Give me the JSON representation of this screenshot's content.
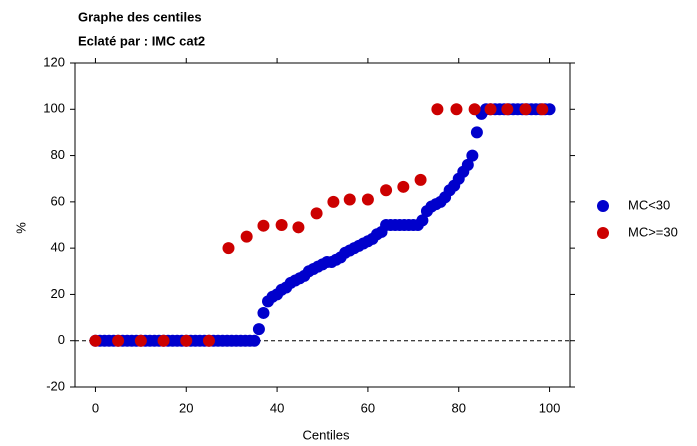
{
  "chart_data": {
    "type": "scatter",
    "title": "Graphe des centiles",
    "subtitle": "Eclaté par : IMC cat2",
    "x_label": "Centiles",
    "y_label": "%",
    "xlim": [
      -4.5,
      104.5
    ],
    "ylim": [
      -20,
      120
    ],
    "xticks": [
      0,
      20,
      40,
      60,
      80,
      100
    ],
    "yticks": [
      -20,
      0,
      20,
      40,
      60,
      80,
      100,
      120
    ],
    "reference_line": 0,
    "legend": "right",
    "series": [
      {
        "name": "MC<30",
        "color": "#0000cc",
        "x": [
          0,
          1,
          2,
          3,
          4,
          5,
          6,
          7,
          8,
          9,
          10,
          11,
          12,
          13,
          14,
          15,
          16,
          17,
          18,
          19,
          20,
          21,
          22,
          23,
          24,
          25,
          26,
          27,
          28,
          29,
          30,
          31,
          32,
          33,
          34,
          35,
          36,
          37,
          38,
          39,
          40,
          41,
          42,
          43,
          44,
          45,
          46,
          47,
          48,
          49,
          50,
          51,
          52,
          53,
          54,
          55,
          56,
          57,
          58,
          59,
          60,
          61,
          62,
          63,
          64,
          65,
          66,
          67,
          68,
          69,
          70,
          71,
          72,
          73,
          74,
          75,
          76,
          77,
          78,
          79,
          80,
          81,
          82,
          83,
          84,
          85,
          86,
          87,
          88,
          89,
          90,
          91,
          92,
          93,
          94,
          95,
          96,
          97,
          98,
          99,
          100
        ],
        "values": [
          0,
          0,
          0,
          0,
          0,
          0,
          0,
          0,
          0,
          0,
          0,
          0,
          0,
          0,
          0,
          0,
          0,
          0,
          0,
          0,
          0,
          0,
          0,
          0,
          0,
          0,
          0,
          0,
          0,
          0,
          0,
          0,
          0,
          0,
          0,
          0,
          5,
          12,
          17,
          19,
          20,
          22,
          23,
          25,
          26,
          27,
          28,
          30,
          31,
          32,
          33,
          34,
          34,
          35,
          36,
          38,
          39,
          40,
          41,
          42,
          43,
          44,
          46,
          47,
          50,
          50,
          50,
          50,
          50,
          50,
          50,
          50,
          52,
          56,
          58,
          59,
          60,
          62,
          65,
          67,
          70,
          73,
          76,
          80,
          90,
          98,
          100,
          100,
          100,
          100,
          100,
          100,
          100,
          100,
          100,
          100,
          100,
          100,
          100,
          100,
          100
        ]
      },
      {
        "name": "MC>=30",
        "color": "#cc0000",
        "x": [
          0,
          5,
          10,
          15,
          20,
          25,
          29.3,
          33.3,
          37,
          41,
          44.7,
          48.7,
          52.4,
          56,
          60,
          64,
          67.8,
          71.6,
          75.3,
          79.5,
          83.5,
          87,
          90.7,
          94.7,
          98.4
        ],
        "values": [
          0,
          0,
          0,
          0,
          0,
          0,
          40,
          45,
          49.7,
          50,
          49,
          55,
          60,
          61,
          61,
          65,
          66.5,
          69.5,
          100,
          100,
          100,
          100,
          100,
          100,
          100
        ]
      }
    ]
  }
}
